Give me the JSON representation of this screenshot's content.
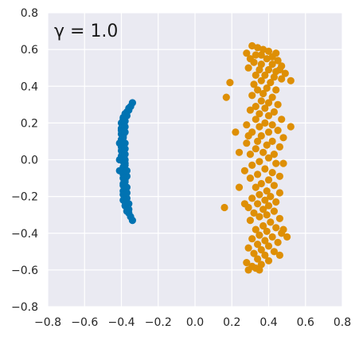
{
  "chart_data": {
    "type": "scatter",
    "title": "",
    "annotation": "γ = 1.0",
    "xlabel": "",
    "ylabel": "",
    "xlim": [
      -0.8,
      0.8
    ],
    "ylim": [
      -0.8,
      0.8
    ],
    "xticks": [
      "−0.8",
      "−0.6",
      "−0.4",
      "−0.2",
      "0.0",
      "0.2",
      "0.4",
      "0.6",
      "0.8"
    ],
    "yticks": [
      "0.8",
      "0.6",
      "0.4",
      "0.2",
      "0.0",
      "−0.2",
      "−0.4",
      "−0.6",
      "−0.8"
    ],
    "grid": true,
    "background": "#eaeaf2",
    "grid_color": "#ffffff",
    "series": [
      {
        "color": "#0173b2",
        "points": [
          [
            -0.34,
            0.31
          ],
          [
            -0.36,
            0.28
          ],
          [
            -0.37,
            0.26
          ],
          [
            -0.38,
            0.25
          ],
          [
            -0.39,
            0.23
          ],
          [
            -0.39,
            0.22
          ],
          [
            -0.4,
            0.2
          ],
          [
            -0.39,
            0.19
          ],
          [
            -0.4,
            0.17
          ],
          [
            -0.4,
            0.16
          ],
          [
            -0.4,
            0.14
          ],
          [
            -0.39,
            0.13
          ],
          [
            -0.4,
            0.11
          ],
          [
            -0.4,
            0.1
          ],
          [
            -0.39,
            0.08
          ],
          [
            -0.4,
            0.07
          ],
          [
            -0.4,
            0.05
          ],
          [
            -0.39,
            0.04
          ],
          [
            -0.4,
            0.02
          ],
          [
            -0.39,
            0.01
          ],
          [
            -0.39,
            -0.01
          ],
          [
            -0.38,
            -0.02
          ],
          [
            -0.39,
            -0.04
          ],
          [
            -0.39,
            -0.05
          ],
          [
            -0.38,
            -0.07
          ],
          [
            -0.39,
            -0.08
          ],
          [
            -0.39,
            -0.1
          ],
          [
            -0.38,
            -0.11
          ],
          [
            -0.39,
            -0.13
          ],
          [
            -0.39,
            -0.14
          ],
          [
            -0.38,
            -0.16
          ],
          [
            -0.39,
            -0.17
          ],
          [
            -0.39,
            -0.19
          ],
          [
            -0.38,
            -0.2
          ],
          [
            -0.39,
            -0.22
          ],
          [
            -0.38,
            -0.23
          ],
          [
            -0.38,
            -0.25
          ],
          [
            -0.37,
            -0.26
          ],
          [
            -0.37,
            -0.28
          ],
          [
            -0.36,
            -0.29
          ],
          [
            -0.35,
            -0.31
          ],
          [
            -0.34,
            -0.33
          ],
          [
            -0.38,
            0.21
          ],
          [
            -0.38,
            0.15
          ],
          [
            -0.38,
            0.09
          ],
          [
            -0.38,
            0.03
          ],
          [
            -0.38,
            -0.03
          ],
          [
            -0.37,
            -0.09
          ],
          [
            -0.37,
            -0.15
          ],
          [
            -0.37,
            -0.21
          ],
          [
            -0.36,
            0.27
          ],
          [
            -0.37,
            0.24
          ],
          [
            -0.38,
            0.18
          ],
          [
            -0.39,
            0.12
          ],
          [
            -0.38,
            0.06
          ],
          [
            -0.38,
            0.0
          ],
          [
            -0.37,
            -0.06
          ],
          [
            -0.38,
            -0.12
          ],
          [
            -0.37,
            -0.18
          ],
          [
            -0.36,
            -0.24
          ],
          [
            -0.36,
            -0.27
          ],
          [
            -0.35,
            0.29
          ],
          [
            -0.41,
            0.0
          ],
          [
            -0.41,
            -0.06
          ],
          [
            -0.41,
            0.09
          ]
        ]
      },
      {
        "color": "#de8f05",
        "points": [
          [
            0.31,
            0.62
          ],
          [
            0.34,
            0.61
          ],
          [
            0.37,
            0.6
          ],
          [
            0.4,
            0.59
          ],
          [
            0.28,
            0.58
          ],
          [
            0.33,
            0.57
          ],
          [
            0.36,
            0.57
          ],
          [
            0.42,
            0.56
          ],
          [
            0.3,
            0.55
          ],
          [
            0.39,
            0.55
          ],
          [
            0.45,
            0.54
          ],
          [
            0.32,
            0.53
          ],
          [
            0.36,
            0.52
          ],
          [
            0.42,
            0.52
          ],
          [
            0.47,
            0.51
          ],
          [
            0.29,
            0.5
          ],
          [
            0.35,
            0.49
          ],
          [
            0.4,
            0.49
          ],
          [
            0.44,
            0.48
          ],
          [
            0.49,
            0.47
          ],
          [
            0.33,
            0.46
          ],
          [
            0.38,
            0.46
          ],
          [
            0.43,
            0.45
          ],
          [
            0.47,
            0.44
          ],
          [
            0.36,
            0.43
          ],
          [
            0.41,
            0.42
          ],
          [
            0.52,
            0.43
          ],
          [
            0.32,
            0.41
          ],
          [
            0.39,
            0.39
          ],
          [
            0.34,
            0.38
          ],
          [
            0.44,
            0.38
          ],
          [
            0.37,
            0.36
          ],
          [
            0.31,
            0.35
          ],
          [
            0.42,
            0.34
          ],
          [
            0.36,
            0.32
          ],
          [
            0.4,
            0.31
          ],
          [
            0.45,
            0.3
          ],
          [
            0.33,
            0.29
          ],
          [
            0.38,
            0.28
          ],
          [
            0.3,
            0.27
          ],
          [
            0.43,
            0.26
          ],
          [
            0.35,
            0.25
          ],
          [
            0.4,
            0.24
          ],
          [
            0.33,
            0.22
          ],
          [
            0.47,
            0.22
          ],
          [
            0.38,
            0.2
          ],
          [
            0.28,
            0.19
          ],
          [
            0.42,
            0.19
          ],
          [
            0.35,
            0.18
          ],
          [
            0.52,
            0.18
          ],
          [
            0.45,
            0.16
          ],
          [
            0.31,
            0.15
          ],
          [
            0.4,
            0.15
          ],
          [
            0.22,
            0.15
          ],
          [
            0.36,
            0.13
          ],
          [
            0.48,
            0.12
          ],
          [
            0.42,
            0.1
          ],
          [
            0.34,
            0.1
          ],
          [
            0.28,
            0.09
          ],
          [
            0.39,
            0.08
          ],
          [
            0.46,
            0.07
          ],
          [
            0.33,
            0.06
          ],
          [
            0.37,
            0.04
          ],
          [
            0.43,
            0.03
          ],
          [
            0.3,
            0.03
          ],
          [
            0.4,
            0.01
          ],
          [
            0.35,
            -0.01
          ],
          [
            0.44,
            -0.02
          ],
          [
            0.31,
            -0.03
          ],
          [
            0.38,
            -0.05
          ],
          [
            0.42,
            -0.07
          ],
          [
            0.34,
            -0.08
          ],
          [
            0.46,
            -0.09
          ],
          [
            0.3,
            -0.1
          ],
          [
            0.4,
            -0.11
          ],
          [
            0.36,
            -0.13
          ],
          [
            0.43,
            -0.14
          ],
          [
            0.33,
            -0.15
          ],
          [
            0.39,
            -0.17
          ],
          [
            0.46,
            -0.18
          ],
          [
            0.35,
            -0.19
          ],
          [
            0.41,
            -0.2
          ],
          [
            0.31,
            -0.21
          ],
          [
            0.38,
            -0.22
          ],
          [
            0.44,
            -0.23
          ],
          [
            0.34,
            -0.24
          ],
          [
            0.4,
            -0.25
          ],
          [
            0.29,
            -0.26
          ],
          [
            0.37,
            -0.27
          ],
          [
            0.43,
            -0.28
          ],
          [
            0.32,
            -0.29
          ],
          [
            0.39,
            -0.3
          ],
          [
            0.35,
            -0.31
          ],
          [
            0.46,
            -0.32
          ],
          [
            0.3,
            -0.33
          ],
          [
            0.41,
            -0.34
          ],
          [
            0.37,
            -0.36
          ],
          [
            0.44,
            -0.37
          ],
          [
            0.33,
            -0.38
          ],
          [
            0.39,
            -0.39
          ],
          [
            0.47,
            -0.4
          ],
          [
            0.35,
            -0.41
          ],
          [
            0.42,
            -0.42
          ],
          [
            0.31,
            -0.43
          ],
          [
            0.38,
            -0.44
          ],
          [
            0.45,
            -0.45
          ],
          [
            0.34,
            -0.46
          ],
          [
            0.4,
            -0.47
          ],
          [
            0.29,
            -0.48
          ],
          [
            0.36,
            -0.49
          ],
          [
            0.43,
            -0.5
          ],
          [
            0.32,
            -0.51
          ],
          [
            0.38,
            -0.52
          ],
          [
            0.46,
            -0.52
          ],
          [
            0.34,
            -0.54
          ],
          [
            0.4,
            -0.55
          ],
          [
            0.28,
            -0.56
          ],
          [
            0.36,
            -0.57
          ],
          [
            0.31,
            -0.58
          ],
          [
            0.33,
            -0.59
          ],
          [
            0.29,
            -0.6
          ],
          [
            0.35,
            -0.6
          ],
          [
            0.24,
            -0.15
          ],
          [
            0.27,
            -0.24
          ],
          [
            0.16,
            -0.26
          ],
          [
            0.17,
            0.34
          ],
          [
            0.19,
            0.42
          ],
          [
            0.24,
            0.04
          ],
          [
            0.48,
            -0.38
          ],
          [
            0.5,
            -0.42
          ],
          [
            0.44,
            0.58
          ],
          [
            0.46,
            0.49
          ],
          [
            0.29,
            0.13
          ],
          [
            0.27,
            -0.06
          ],
          [
            0.48,
            -0.02
          ]
        ]
      }
    ]
  }
}
